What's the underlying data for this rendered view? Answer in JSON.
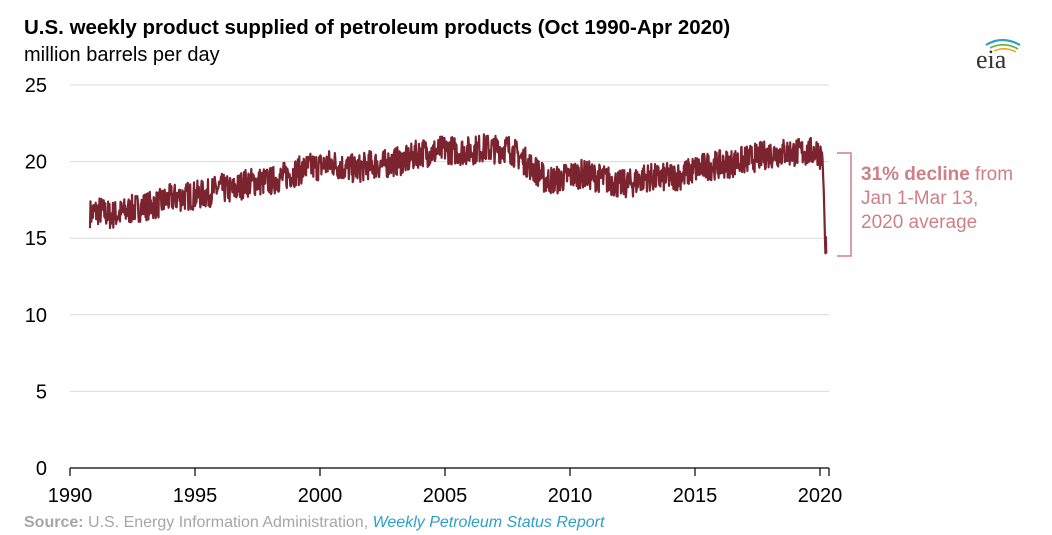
{
  "chart_data": {
    "type": "line",
    "title": "U.S. weekly product supplied of petroleum products (Oct 1990-Apr 2020)",
    "ylabel": "million barrels per day",
    "ylim": [
      0,
      25
    ],
    "xlim": [
      1990,
      2020.3
    ],
    "y_ticks": [
      "0",
      "5",
      "10",
      "15",
      "20",
      "25"
    ],
    "x_ticks": [
      "1990",
      "1995",
      "2000",
      "2005",
      "2010",
      "2015",
      "2020"
    ],
    "grid": "horizontal",
    "line_color": "#7b2430",
    "series": [
      {
        "x": [
          1990.8,
          1991.2,
          1991.6,
          1992.0,
          1992.5,
          1993.0,
          1993.5,
          1994.0,
          1994.5,
          1995.0,
          1995.5,
          1996.0,
          1996.5,
          1997.0,
          1997.5,
          1998.0,
          1998.5,
          1999.0,
          1999.5,
          2000.0,
          2000.5,
          2001.0,
          2001.5,
          2002.0,
          2002.5,
          2003.0,
          2003.5,
          2004.0,
          2004.5,
          2005.0,
          2005.5,
          2006.0,
          2006.5,
          2007.0,
          2007.5,
          2008.0,
          2008.5,
          2008.8,
          2009.0,
          2009.5,
          2010.0,
          2010.5,
          2011.0,
          2011.5,
          2012.0,
          2012.5,
          2013.0,
          2013.5,
          2014.0,
          2014.5,
          2015.0,
          2015.5,
          2016.0,
          2016.5,
          2017.0,
          2017.5,
          2018.0,
          2018.5,
          2019.0,
          2019.5,
          2019.9,
          2020.1,
          2020.15,
          2020.2,
          2020.25
        ],
        "values": [
          16.6,
          16.8,
          16.5,
          16.6,
          16.9,
          17.1,
          17.2,
          17.6,
          17.7,
          17.8,
          17.9,
          18.3,
          18.1,
          18.6,
          18.7,
          18.7,
          19.0,
          19.3,
          19.6,
          19.7,
          19.9,
          19.6,
          19.5,
          19.8,
          19.8,
          20.0,
          20.1,
          20.6,
          20.6,
          20.8,
          20.7,
          20.7,
          20.9,
          20.8,
          20.9,
          20.3,
          19.6,
          19.2,
          18.8,
          18.8,
          19.1,
          19.2,
          19.0,
          18.8,
          18.5,
          18.6,
          19.0,
          18.9,
          19.0,
          19.1,
          19.5,
          19.7,
          19.8,
          19.9,
          20.1,
          20.3,
          20.5,
          20.6,
          20.6,
          20.6,
          20.7,
          20.2,
          18.0,
          15.0,
          14.0
        ]
      }
    ],
    "annotation": {
      "bold": "31% decline",
      "text_1": " from",
      "text_2": "Jan 1-Mar 13,",
      "text_3": "2020 average",
      "color": "#d07f86"
    },
    "source": {
      "label": "Source:",
      "text": " U.S. Energy Information Administration, ",
      "link": "Weekly Petroleum Status Report"
    },
    "logo_text": "eia"
  }
}
